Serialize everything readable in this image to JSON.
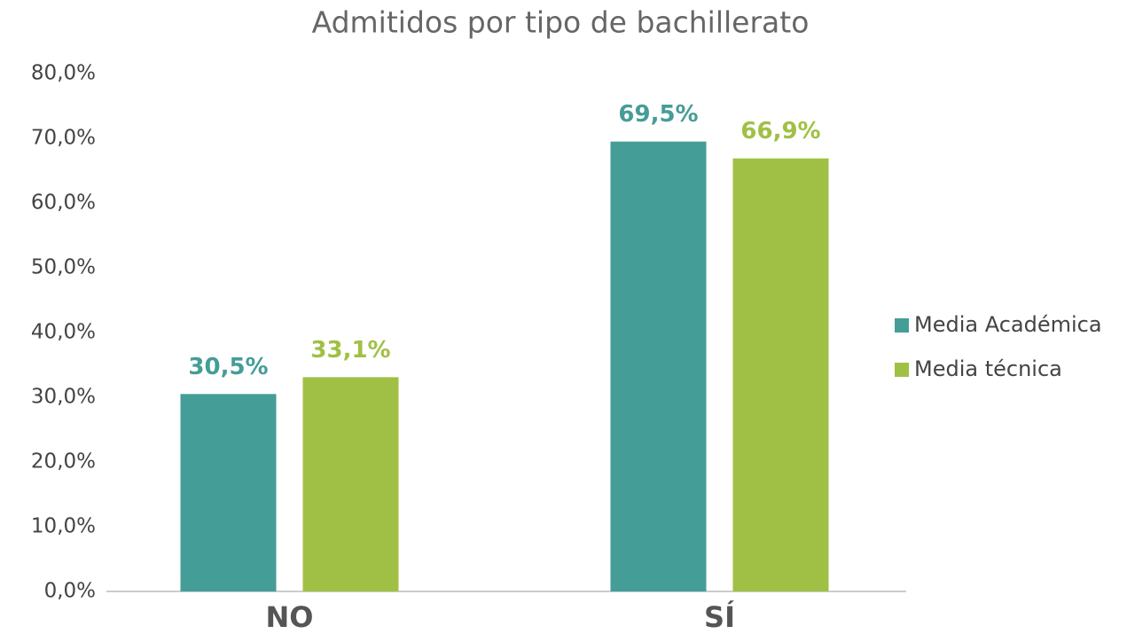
{
  "chart_data": {
    "type": "bar",
    "title": "Admitidos por tipo de bachillerato",
    "categories": [
      "NO",
      "SÍ"
    ],
    "series": [
      {
        "name": "Media Académica",
        "color": "#459d97",
        "values": [
          30.5,
          69.5
        ],
        "value_labels": [
          "30,5%",
          "69,5%"
        ]
      },
      {
        "name": "Media técnica",
        "color": "#a0c045",
        "values": [
          33.1,
          66.9
        ],
        "value_labels": [
          "33,1%",
          "66,9%"
        ]
      }
    ],
    "ylim": [
      0,
      80
    ],
    "yticks": [
      {
        "value": 0,
        "label": "0,0%"
      },
      {
        "value": 10,
        "label": "10,0%"
      },
      {
        "value": 20,
        "label": "20,0%"
      },
      {
        "value": 30,
        "label": "30,0%"
      },
      {
        "value": 40,
        "label": "40,0%"
      },
      {
        "value": 50,
        "label": "50,0%"
      },
      {
        "value": 60,
        "label": "60,0%"
      },
      {
        "value": 70,
        "label": "70,0%"
      },
      {
        "value": 80,
        "label": "80,0%"
      }
    ],
    "grid": false,
    "legend": "right"
  }
}
